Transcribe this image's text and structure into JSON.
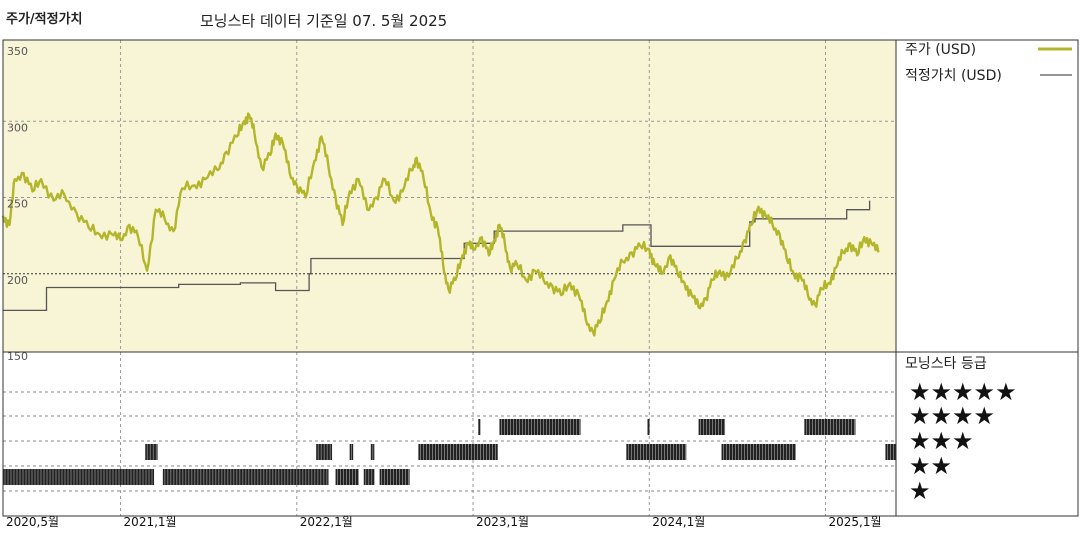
{
  "header": {
    "title": "주가/적정가치",
    "subtitle": "모닝스타 데이터 기준일 07. 5월 2025"
  },
  "legend": {
    "price_label": "주가 (USD)",
    "fair_label": "적정가치 (USD)",
    "rating_title": "모닝스타 등급"
  },
  "colors": {
    "price": "#b3b52a",
    "fair": "#555555",
    "panel": "#f8f4d6"
  },
  "chart_data": {
    "type": "line",
    "xlabel": "",
    "ylabel": "",
    "ylim": [
      150,
      350
    ],
    "y_ticks": [
      "350",
      "300",
      "250",
      "200",
      "150"
    ],
    "x_ticks": [
      {
        "label": "2020,5월",
        "t": 2020.333
      },
      {
        "label": "2021,1월",
        "t": 2021.0
      },
      {
        "label": "2022,1월",
        "t": 2022.0
      },
      {
        "label": "2023,1월",
        "t": 2023.0
      },
      {
        "label": "2024,1월",
        "t": 2024.0
      },
      {
        "label": "2025,1월",
        "t": 2025.0
      }
    ],
    "x_range": [
      2020.333,
      2025.4
    ],
    "grid": true,
    "price_series": {
      "name": "주가 (USD)",
      "points": [
        [
          2020.333,
          238
        ],
        [
          2020.37,
          232
        ],
        [
          2020.4,
          262
        ],
        [
          2020.45,
          266
        ],
        [
          2020.5,
          254
        ],
        [
          2020.55,
          262
        ],
        [
          2020.62,
          248
        ],
        [
          2020.68,
          252
        ],
        [
          2020.75,
          240
        ],
        [
          2020.82,
          230
        ],
        [
          2020.88,
          226
        ],
        [
          2020.95,
          226
        ],
        [
          2021.0,
          222
        ],
        [
          2021.05,
          232
        ],
        [
          2021.1,
          224
        ],
        [
          2021.15,
          202
        ],
        [
          2021.2,
          242
        ],
        [
          2021.25,
          236
        ],
        [
          2021.3,
          228
        ],
        [
          2021.35,
          256
        ],
        [
          2021.42,
          258
        ],
        [
          2021.48,
          262
        ],
        [
          2021.55,
          268
        ],
        [
          2021.6,
          280
        ],
        [
          2021.66,
          290
        ],
        [
          2021.7,
          300
        ],
        [
          2021.73,
          304
        ],
        [
          2021.76,
          292
        ],
        [
          2021.8,
          270
        ],
        [
          2021.85,
          278
        ],
        [
          2021.88,
          292
        ],
        [
          2021.92,
          286
        ],
        [
          2021.96,
          266
        ],
        [
          2022.0,
          258
        ],
        [
          2022.05,
          250
        ],
        [
          2022.1,
          274
        ],
        [
          2022.14,
          290
        ],
        [
          2022.18,
          270
        ],
        [
          2022.22,
          250
        ],
        [
          2022.26,
          232
        ],
        [
          2022.3,
          254
        ],
        [
          2022.35,
          262
        ],
        [
          2022.4,
          242
        ],
        [
          2022.45,
          250
        ],
        [
          2022.5,
          262
        ],
        [
          2022.55,
          248
        ],
        [
          2022.6,
          254
        ],
        [
          2022.65,
          268
        ],
        [
          2022.68,
          276
        ],
        [
          2022.72,
          262
        ],
        [
          2022.76,
          240
        ],
        [
          2022.8,
          230
        ],
        [
          2022.83,
          206
        ],
        [
          2022.86,
          190
        ],
        [
          2022.9,
          196
        ],
        [
          2022.94,
          212
        ],
        [
          2022.97,
          220
        ],
        [
          2023.0,
          216
        ],
        [
          2023.05,
          224
        ],
        [
          2023.09,
          212
        ],
        [
          2023.12,
          222
        ],
        [
          2023.15,
          232
        ],
        [
          2023.18,
          220
        ],
        [
          2023.21,
          204
        ],
        [
          2023.25,
          206
        ],
        [
          2023.3,
          196
        ],
        [
          2023.35,
          202
        ],
        [
          2023.4,
          196
        ],
        [
          2023.45,
          192
        ],
        [
          2023.5,
          186
        ],
        [
          2023.55,
          194
        ],
        [
          2023.6,
          186
        ],
        [
          2023.64,
          170
        ],
        [
          2023.68,
          162
        ],
        [
          2023.72,
          168
        ],
        [
          2023.76,
          182
        ],
        [
          2023.8,
          196
        ],
        [
          2023.85,
          208
        ],
        [
          2023.9,
          214
        ],
        [
          2023.95,
          218
        ],
        [
          2024.0,
          216
        ],
        [
          2024.03,
          206
        ],
        [
          2024.07,
          200
        ],
        [
          2024.12,
          212
        ],
        [
          2024.16,
          200
        ],
        [
          2024.2,
          194
        ],
        [
          2024.24,
          186
        ],
        [
          2024.28,
          178
        ],
        [
          2024.32,
          184
        ],
        [
          2024.36,
          196
        ],
        [
          2024.4,
          202
        ],
        [
          2024.45,
          198
        ],
        [
          2024.5,
          210
        ],
        [
          2024.54,
          222
        ],
        [
          2024.58,
          232
        ],
        [
          2024.62,
          244
        ],
        [
          2024.66,
          238
        ],
        [
          2024.7,
          232
        ],
        [
          2024.74,
          226
        ],
        [
          2024.78,
          210
        ],
        [
          2024.82,
          200
        ],
        [
          2024.86,
          198
        ],
        [
          2024.9,
          186
        ],
        [
          2024.94,
          180
        ],
        [
          2024.98,
          190
        ],
        [
          2025.02,
          194
        ],
        [
          2025.06,
          204
        ],
        [
          2025.1,
          214
        ],
        [
          2025.14,
          220
        ],
        [
          2025.18,
          212
        ],
        [
          2025.22,
          224
        ],
        [
          2025.26,
          220
        ],
        [
          2025.3,
          214
        ]
      ]
    },
    "fair_series": {
      "name": "적정가치 (USD)",
      "points": [
        [
          2020.333,
          176
        ],
        [
          2020.58,
          176
        ],
        [
          2020.58,
          191
        ],
        [
          2021.33,
          191
        ],
        [
          2021.33,
          193
        ],
        [
          2021.68,
          193
        ],
        [
          2021.68,
          194
        ],
        [
          2021.88,
          194
        ],
        [
          2021.88,
          189
        ],
        [
          2022.07,
          189
        ],
        [
          2022.07,
          200
        ],
        [
          2022.08,
          200
        ],
        [
          2022.08,
          210
        ],
        [
          2022.95,
          210
        ],
        [
          2022.95,
          220
        ],
        [
          2023.12,
          220
        ],
        [
          2023.12,
          228
        ],
        [
          2023.85,
          228
        ],
        [
          2023.85,
          232
        ],
        [
          2024.01,
          232
        ],
        [
          2024.01,
          218
        ],
        [
          2024.57,
          218
        ],
        [
          2024.57,
          234
        ],
        [
          2024.6,
          234
        ],
        [
          2024.6,
          236
        ],
        [
          2025.12,
          236
        ],
        [
          2025.12,
          242
        ],
        [
          2025.25,
          242
        ],
        [
          2025.25,
          248
        ]
      ]
    },
    "rating_rows": [
      {
        "stars": 5,
        "label": "★★★★★",
        "segments": []
      },
      {
        "stars": 4,
        "label": "★★★★",
        "segments": [
          [
            2023.03,
            2023.04
          ],
          [
            2023.15,
            2023.61
          ],
          [
            2023.99,
            2024.0
          ],
          [
            2024.28,
            2024.43
          ],
          [
            2024.88,
            2025.17
          ]
        ]
      },
      {
        "stars": 3,
        "label": "★★★",
        "segments": [
          [
            2021.14,
            2021.21
          ],
          [
            2022.11,
            2022.2
          ],
          [
            2022.3,
            2022.32
          ],
          [
            2022.42,
            2022.44
          ],
          [
            2022.69,
            2023.14
          ],
          [
            2023.87,
            2024.21
          ],
          [
            2024.41,
            2024.83
          ],
          [
            2025.34,
            2025.4
          ]
        ]
      },
      {
        "stars": 2,
        "label": "★★",
        "segments": [
          [
            2020.333,
            2021.19
          ],
          [
            2021.24,
            2022.18
          ],
          [
            2022.22,
            2022.35
          ],
          [
            2022.38,
            2022.44
          ],
          [
            2022.47,
            2022.64
          ]
        ]
      },
      {
        "stars": 1,
        "label": "★",
        "segments": []
      }
    ]
  }
}
